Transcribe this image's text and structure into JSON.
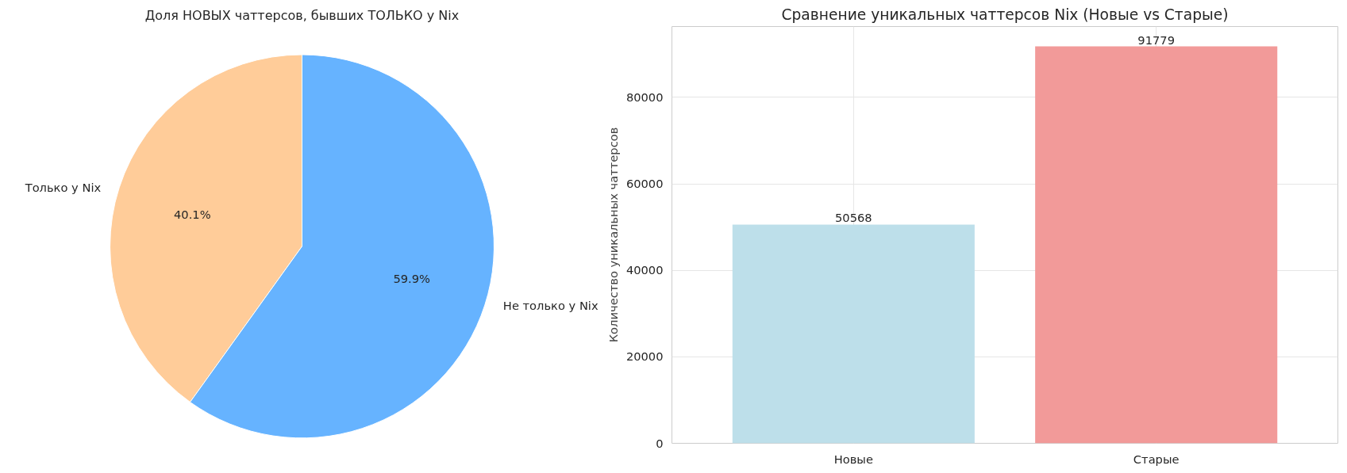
{
  "chart_data": [
    {
      "type": "pie",
      "title": "Доля НОВЫХ чаттерсов, бывших ТОЛЬКО у Nix",
      "categories": [
        "Только у Nix",
        "Не только у Nix"
      ],
      "values": [
        40.1,
        59.9
      ],
      "colors": [
        "#ffcc99",
        "#66b3ff"
      ],
      "value_labels": [
        "40.1%",
        "59.9%"
      ]
    },
    {
      "type": "bar",
      "title": "Сравнение уникальных чаттерсов Nix (Новые vs Старые)",
      "ylabel": "Количество уникальных чаттерсов",
      "categories": [
        "Новые",
        "Старые"
      ],
      "values": [
        50568,
        91779
      ],
      "colors": [
        "#bddfea",
        "#f29a99"
      ],
      "ylim": [
        0,
        96368
      ],
      "yticks": [
        0,
        20000,
        40000,
        60000,
        80000
      ],
      "grid": true,
      "data_labels": true
    }
  ]
}
